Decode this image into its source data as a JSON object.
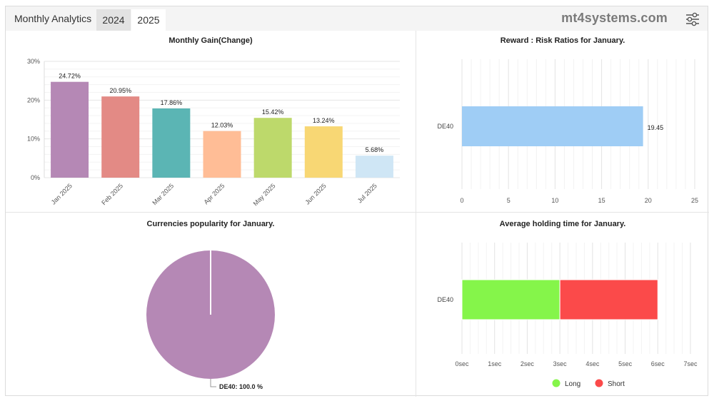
{
  "header": {
    "title": "Monthly Analytics",
    "tabs": [
      "2024",
      "2025"
    ],
    "active_tab": "2025",
    "brand": "mt4systems.com"
  },
  "chart_data": [
    {
      "id": "monthly-gain",
      "type": "bar",
      "title": "Monthly Gain(Change)",
      "categories": [
        "Jan 2025",
        "Feb 2025",
        "Mar 2025",
        "Apr 2025",
        "May 2025",
        "Jun 2025",
        "Jul 2025"
      ],
      "values": [
        24.72,
        20.95,
        17.86,
        12.03,
        15.42,
        13.24,
        5.68
      ],
      "labels": [
        "24.72%",
        "20.95%",
        "17.86%",
        "12.03%",
        "15.42%",
        "13.24%",
        "5.68%"
      ],
      "colors": [
        "#b588b5",
        "#e38a85",
        "#5bb5b4",
        "#ffbd96",
        "#bdd96b",
        "#f8d774",
        "#cfe6f5"
      ],
      "ylim": [
        0,
        30
      ],
      "yticks": [
        "0%",
        "10%",
        "20%",
        "30%"
      ],
      "xlabel": "",
      "ylabel": ""
    },
    {
      "id": "reward-risk",
      "type": "bar",
      "orientation": "horizontal",
      "title": "Reward : Risk Ratios for January.",
      "categories": [
        "DE40"
      ],
      "values": [
        19.45
      ],
      "labels": [
        "19.45"
      ],
      "color": "#9fcdf5",
      "xlim": [
        0,
        25
      ],
      "xticks": [
        "0",
        "5",
        "10",
        "15",
        "20",
        "25"
      ]
    },
    {
      "id": "currencies",
      "type": "pie",
      "title": "Currencies popularity for January.",
      "slices": [
        {
          "name": "DE40",
          "value": 100.0,
          "label": "DE40: 100.0 %"
        }
      ],
      "color": "#b588b5"
    },
    {
      "id": "holding-time",
      "type": "bar",
      "orientation": "horizontal",
      "stacked": true,
      "title": "Average holding time for January.",
      "categories": [
        "DE40"
      ],
      "series": [
        {
          "name": "Long",
          "values": [
            3
          ],
          "color": "#85f54a"
        },
        {
          "name": "Short",
          "values": [
            3
          ],
          "color": "#fb4a4a"
        }
      ],
      "xlim": [
        0,
        7
      ],
      "xticks": [
        "0sec",
        "1sec",
        "2sec",
        "3sec",
        "4sec",
        "5sec",
        "6sec",
        "7sec"
      ],
      "legend": [
        "Long",
        "Short"
      ],
      "legend_position": "bottom"
    }
  ]
}
